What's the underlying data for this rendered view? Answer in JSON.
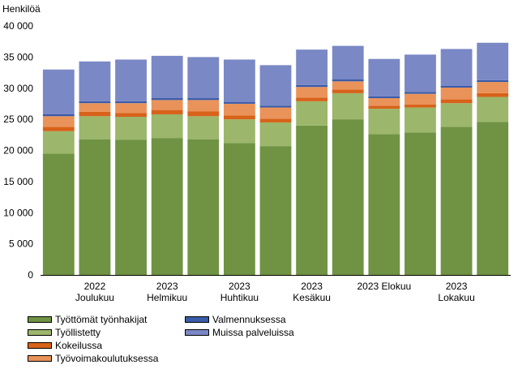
{
  "chart_data": {
    "type": "bar",
    "stacked": true,
    "ylabel": "Henkilöä",
    "ylim": [
      0,
      40000
    ],
    "yticks": [
      0,
      5000,
      10000,
      15000,
      20000,
      25000,
      30000,
      35000,
      40000
    ],
    "ytick_labels": [
      "0",
      "5 000",
      "10 000",
      "15 000",
      "20 000",
      "25 000",
      "30 000",
      "35 000",
      "40 000"
    ],
    "grid": false,
    "legend_position": "bottom-left",
    "x_labels": [
      {
        "index": 1,
        "lines": [
          "2022",
          "Joulukuu"
        ]
      },
      {
        "index": 3,
        "lines": [
          "2023",
          "Helmikuu"
        ]
      },
      {
        "index": 5,
        "lines": [
          "2023",
          "Huhtikuu"
        ]
      },
      {
        "index": 7,
        "lines": [
          "2023",
          "Kesäkuu"
        ]
      },
      {
        "index": 9,
        "lines": [
          "2023 Elokuu"
        ]
      },
      {
        "index": 11,
        "lines": [
          "2023",
          "Lokakuu"
        ]
      }
    ],
    "series": [
      {
        "name": "Työttömät työnhakijat",
        "color": "#6f9342",
        "values": [
          19500,
          21800,
          21700,
          22000,
          21800,
          21200,
          20700,
          24000,
          25000,
          22600,
          22900,
          23800,
          24600
        ]
      },
      {
        "name": "Työllistetty",
        "color": "#9cb66b",
        "values": [
          3600,
          3700,
          3700,
          3800,
          3700,
          3800,
          3800,
          3900,
          4200,
          4100,
          4000,
          3800,
          4000
        ]
      },
      {
        "name": "Kokeilussa",
        "color": "#d8621a",
        "values": [
          700,
          700,
          600,
          700,
          800,
          600,
          600,
          600,
          600,
          500,
          500,
          600,
          600
        ]
      },
      {
        "name": "Työvoimakoulutuksessa",
        "color": "#e9935a",
        "values": [
          1700,
          1400,
          1600,
          1600,
          1800,
          1900,
          1800,
          1700,
          1300,
          1200,
          1700,
          1900,
          1800
        ]
      },
      {
        "name": "Valmennuksessa",
        "color": "#3a5ba8",
        "values": [
          300,
          300,
          300,
          300,
          300,
          300,
          300,
          300,
          300,
          300,
          300,
          300,
          300
        ]
      },
      {
        "name": "Muissa palveluissa",
        "color": "#7a88c5",
        "values": [
          7200,
          6400,
          6700,
          6800,
          6600,
          6800,
          6500,
          5700,
          5400,
          6000,
          6000,
          5900,
          6000
        ]
      }
    ]
  }
}
